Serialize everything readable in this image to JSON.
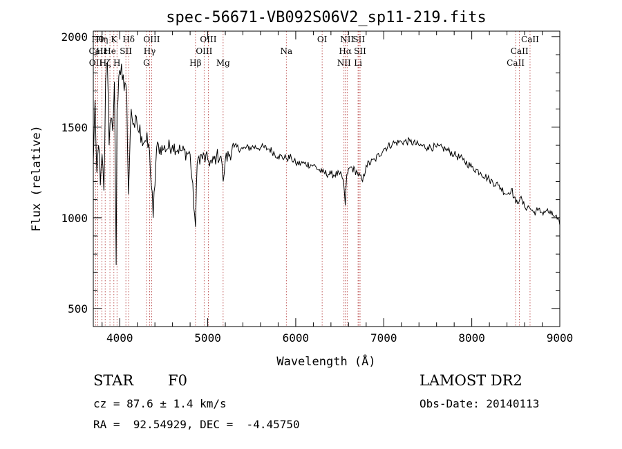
{
  "chart_data": {
    "type": "line",
    "title": "spec-56671-VB092S06V2_sp11-219.fits",
    "xlabel": "Wavelength (Å)",
    "ylabel": "Flux (relative)",
    "xlim": [
      3700,
      9000
    ],
    "ylim": [
      400,
      2030
    ],
    "xticks": [
      4000,
      5000,
      6000,
      7000,
      8000,
      9000
    ],
    "yticks": [
      500,
      1000,
      1500,
      2000
    ],
    "grid": false,
    "series": [
      {
        "x": [
          3700,
          3720,
          3740,
          3760,
          3780,
          3800,
          3820,
          3840,
          3860,
          3880,
          3900,
          3920,
          3940,
          3960,
          3970,
          3990,
          4020,
          4050,
          4080,
          4100,
          4130,
          4160,
          4200,
          4250,
          4300,
          4340,
          4380,
          4420,
          4500,
          4600,
          4700,
          4800,
          4861,
          4880,
          4900,
          5000,
          5050,
          5100,
          5150,
          5175,
          5200,
          5300,
          5400,
          5500,
          5600,
          5700,
          5800,
          5890,
          5950,
          6000,
          6100,
          6200,
          6300,
          6400,
          6500,
          6540,
          6563,
          6580,
          6620,
          6700,
          6760,
          6800,
          6900,
          7000,
          7100,
          7200,
          7300,
          7400,
          7500,
          7600,
          7700,
          7800,
          7900,
          8000,
          8100,
          8200,
          8300,
          8400,
          8450,
          8500,
          8550,
          8600,
          8650,
          8700,
          8750,
          8800,
          8850,
          8900,
          8950,
          9000
        ],
        "y": [
          1300,
          1650,
          1250,
          1400,
          1180,
          1350,
          1150,
          1750,
          1850,
          1400,
          1550,
          1480,
          1750,
          740,
          1600,
          1780,
          1850,
          1700,
          1680,
          1130,
          1600,
          1520,
          1500,
          1450,
          1420,
          1360,
          1000,
          1390,
          1380,
          1400,
          1370,
          1350,
          950,
          1300,
          1340,
          1320,
          1300,
          1340,
          1340,
          1200,
          1320,
          1390,
          1380,
          1390,
          1390,
          1380,
          1340,
          1330,
          1330,
          1300,
          1300,
          1290,
          1250,
          1240,
          1240,
          1210,
          1070,
          1240,
          1280,
          1250,
          1200,
          1290,
          1320,
          1380,
          1410,
          1420,
          1420,
          1400,
          1390,
          1390,
          1380,
          1350,
          1320,
          1280,
          1250,
          1210,
          1180,
          1130,
          1160,
          1080,
          1110,
          1060,
          1060,
          1030,
          1040,
          1030,
          1040,
          1020,
          1010,
          960
        ]
      }
    ],
    "lines": [
      {
        "wl": 3727,
        "label": "OII",
        "row": 3
      },
      {
        "wl": 3750,
        "label": "Hθ",
        "row": 1
      },
      {
        "wl": 3750,
        "label": "CaII",
        "row": 2
      },
      {
        "wl": 3798,
        "label": "Hη",
        "row": 1
      },
      {
        "wl": 3798,
        "label": "Hε",
        "row": 2
      },
      {
        "wl": 3835,
        "label": "Hζ",
        "row": 3
      },
      {
        "wl": 3889,
        "label": "He",
        "row": 2
      },
      {
        "wl": 3934,
        "label": "K",
        "row": 1
      },
      {
        "wl": 3969,
        "label": "H",
        "row": 3
      },
      {
        "wl": 4070,
        "label": "SII",
        "row": 2
      },
      {
        "wl": 4102,
        "label": "Hδ",
        "row": 1
      },
      {
        "wl": 4304,
        "label": "G",
        "row": 3
      },
      {
        "wl": 4340,
        "label": "Hγ",
        "row": 2
      },
      {
        "wl": 4363,
        "label": "OIII",
        "row": 1
      },
      {
        "wl": 4861,
        "label": "Hβ",
        "row": 3
      },
      {
        "wl": 4959,
        "label": "OIII",
        "row": 2
      },
      {
        "wl": 5007,
        "label": "OIII",
        "row": 1
      },
      {
        "wl": 5175,
        "label": "Mg",
        "row": 3
      },
      {
        "wl": 5893,
        "label": "Na",
        "row": 2
      },
      {
        "wl": 6300,
        "label": "OI",
        "row": 1
      },
      {
        "wl": 6548,
        "label": "NII",
        "row": 3
      },
      {
        "wl": 6563,
        "label": "Hα",
        "row": 2
      },
      {
        "wl": 6584,
        "label": "NII",
        "row": 1
      },
      {
        "wl": 6708,
        "label": "Li",
        "row": 3
      },
      {
        "wl": 6717,
        "label": "SII",
        "row": 1
      },
      {
        "wl": 6731,
        "label": "SII",
        "row": 2
      },
      {
        "wl": 8498,
        "label": "CaII",
        "row": 3
      },
      {
        "wl": 8542,
        "label": "CaII",
        "row": 2
      },
      {
        "wl": 8662,
        "label": "CaII",
        "row": 1
      }
    ]
  },
  "info": {
    "class_label": "STAR",
    "subclass": "F0",
    "redshift_text": "cz = 87.6 ± 1.4 km/s",
    "coords_text": "RA =  92.54929, DEC =  -4.45750",
    "survey": "LAMOST DR2",
    "obs_date": "Obs-Date: 20140113"
  }
}
